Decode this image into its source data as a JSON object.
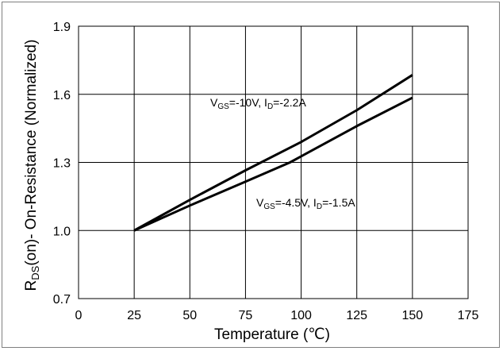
{
  "chart_data": {
    "type": "line",
    "xlabel": "Temperature (℃)",
    "ylabel_parts": {
      "main": "R",
      "sub": "DS",
      "rest": "(on)- On-Resistance (Normalized)"
    },
    "xlim": [
      0,
      175
    ],
    "ylim": [
      0.7,
      1.9
    ],
    "xticks": [
      0,
      25,
      50,
      75,
      100,
      125,
      150,
      175
    ],
    "yticks": [
      0.7,
      1.0,
      1.3,
      1.6,
      1.9
    ],
    "xtick_labels": [
      "0",
      "25",
      "50",
      "75",
      "100",
      "125",
      "150",
      "175"
    ],
    "ytick_labels": [
      "0.7",
      "1.0",
      "1.3",
      "1.6",
      "1.9"
    ],
    "grid": true,
    "series": [
      {
        "points": [
          [
            25,
            1.0
          ],
          [
            50,
            1.135
          ],
          [
            75,
            1.265
          ],
          [
            100,
            1.39
          ],
          [
            125,
            1.53
          ],
          [
            150,
            1.685
          ]
        ],
        "label_parts": {
          "a": "V",
          "a_sub": "GS",
          "b": "=-10V, I",
          "b_sub": "D",
          "c": "=-2.2A"
        }
      },
      {
        "points": [
          [
            25,
            1.0
          ],
          [
            50,
            1.11
          ],
          [
            75,
            1.215
          ],
          [
            95,
            1.3
          ],
          [
            125,
            1.46
          ],
          [
            150,
            1.585
          ]
        ],
        "label_parts": {
          "a": "V",
          "a_sub": "GS",
          "b": "=-4.5V, I",
          "b_sub": "D",
          "c": "=-1.5A"
        }
      }
    ]
  }
}
